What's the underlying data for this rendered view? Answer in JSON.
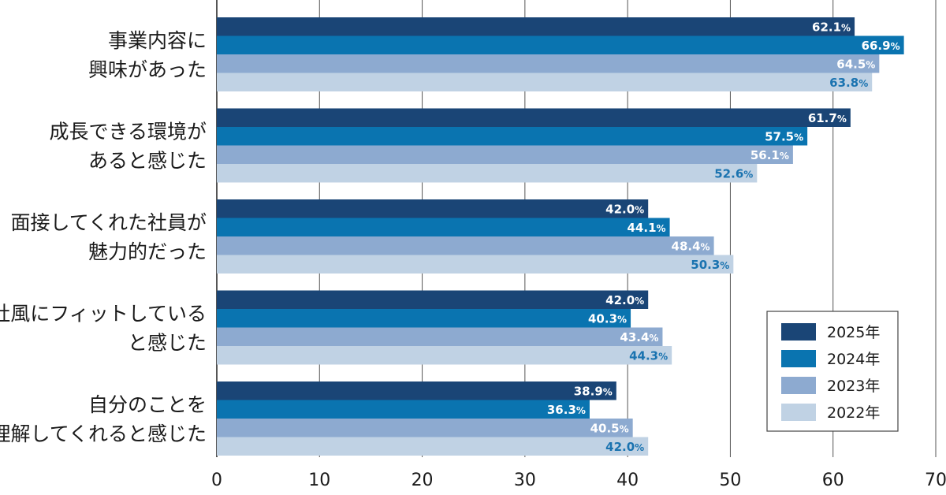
{
  "chart_data": {
    "type": "bar",
    "orientation": "horizontal",
    "title": "",
    "xlabel": "",
    "ylabel": "",
    "xlim": [
      0,
      70
    ],
    "xticks": [
      0,
      10,
      20,
      30,
      40,
      50,
      60,
      70
    ],
    "grid": true,
    "legend_position": "bottom-right",
    "value_suffix": "%",
    "categories": [
      [
        "事業内容に",
        "興味があった"
      ],
      [
        "成長できる環境が",
        "あると感じた"
      ],
      [
        "面接してくれた社員が",
        "魅力的だった"
      ],
      [
        "社風にフィットしている",
        "と感じた"
      ],
      [
        "自分のことを",
        "理解してくれると感じた"
      ]
    ],
    "series": [
      {
        "name": "2025年",
        "color": "#1a4576",
        "label_color": "#ffffff",
        "values": [
          62.1,
          61.7,
          42.0,
          42.0,
          38.9
        ]
      },
      {
        "name": "2024年",
        "color": "#0a74b0",
        "label_color": "#ffffff",
        "values": [
          66.9,
          57.5,
          44.1,
          40.3,
          36.3
        ]
      },
      {
        "name": "2023年",
        "color": "#8daad0",
        "label_color": "#ffffff",
        "values": [
          64.5,
          56.1,
          48.4,
          43.4,
          40.5
        ]
      },
      {
        "name": "2022年",
        "color": "#c0d2e4",
        "label_color": "#1a73b0",
        "values": [
          63.8,
          52.6,
          50.3,
          44.3,
          42.0
        ]
      }
    ]
  }
}
